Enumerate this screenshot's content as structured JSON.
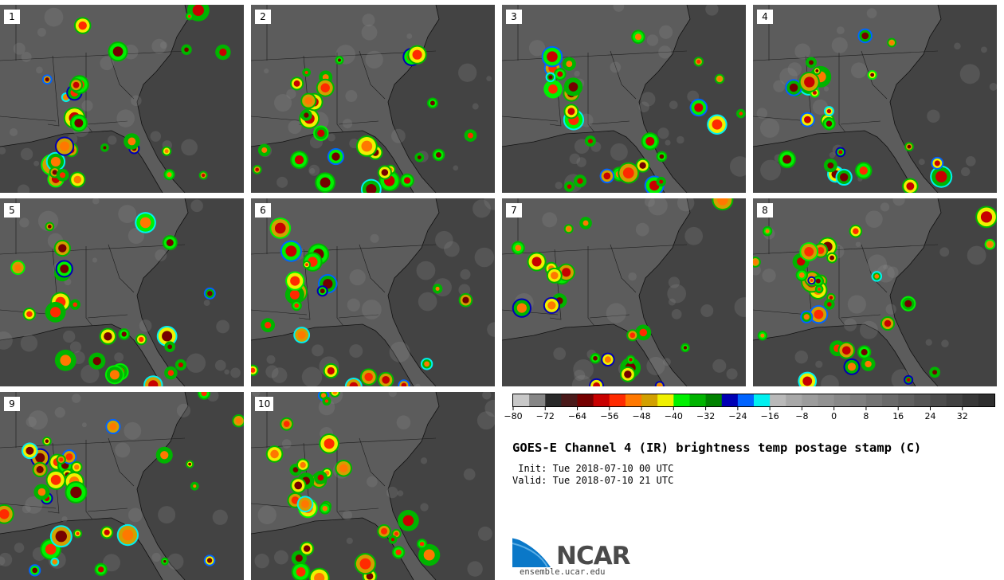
{
  "panels": [
    {
      "label": "1"
    },
    {
      "label": "2"
    },
    {
      "label": "3"
    },
    {
      "label": "4"
    },
    {
      "label": "5"
    },
    {
      "label": "6"
    },
    {
      "label": "7"
    },
    {
      "label": "8"
    },
    {
      "label": "9"
    },
    {
      "label": "10"
    }
  ],
  "colorbar": {
    "colors": [
      "#c8c8c8",
      "#868686",
      "#2a2a2a",
      "#4a1a1a",
      "#750000",
      "#c80000",
      "#ff2a00",
      "#ff7800",
      "#d2a000",
      "#f0f000",
      "#00f000",
      "#00b400",
      "#008200",
      "#0000b4",
      "#0064ff",
      "#00f0f0",
      "#b9b9b9",
      "#a8a8a8",
      "#9c9c9c",
      "#929292",
      "#888888",
      "#7e7e7e",
      "#747474",
      "#6a6a6a",
      "#606060",
      "#565656",
      "#4c4c4c",
      "#424242",
      "#383838",
      "#2e2e2e"
    ],
    "tick_labels": [
      "−80",
      "−72",
      "−64",
      "−56",
      "−48",
      "−40",
      "−32",
      "−24",
      "−16",
      "−8",
      "0",
      "8",
      "16",
      "24",
      "32"
    ]
  },
  "title": "GOES-E Channel 4 (IR) brightness temp postage stamp (C)",
  "init": " Init: Tue 2018-07-10 00 UTC",
  "valid": "Valid: Tue 2018-07-10 21 UTC",
  "logo": {
    "name": "NCAR",
    "url": "ensemble.ucar.edu",
    "brand_color": "#0a78c8"
  }
}
